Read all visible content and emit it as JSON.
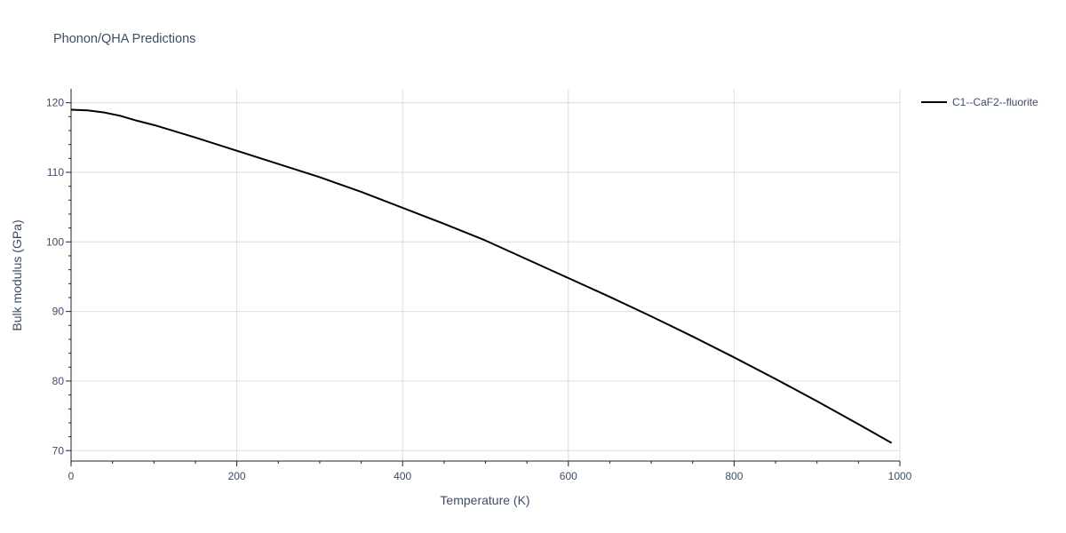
{
  "chart_data": {
    "type": "line",
    "title": "Phonon/QHA Predictions",
    "xlabel": "Temperature (K)",
    "ylabel": "Bulk modulus (GPa)",
    "xlim": [
      0,
      1000
    ],
    "ylim": [
      68.5,
      122
    ],
    "x_ticks": [
      0,
      200,
      400,
      600,
      800,
      1000
    ],
    "x_tick_labels": [
      "0",
      "200",
      "400",
      "600",
      "800",
      "1000"
    ],
    "y_ticks": [
      70,
      80,
      90,
      100,
      110,
      120
    ],
    "y_tick_labels": [
      "70",
      "80",
      "90",
      "100",
      "110",
      "120"
    ],
    "grid": true,
    "legend_position": "top-right",
    "line_color": "#000000",
    "series": [
      {
        "name": "C1--CaF2--fluorite",
        "x": [
          0,
          20,
          40,
          60,
          80,
          100,
          150,
          200,
          250,
          300,
          350,
          400,
          450,
          500,
          550,
          600,
          650,
          700,
          750,
          800,
          850,
          900,
          950,
          990
        ],
        "y": [
          119.0,
          118.9,
          118.6,
          118.1,
          117.4,
          116.8,
          115.0,
          113.1,
          111.2,
          109.3,
          107.2,
          104.9,
          102.6,
          100.2,
          97.5,
          94.8,
          92.1,
          89.3,
          86.4,
          83.4,
          80.3,
          77.1,
          73.8,
          71.1
        ]
      }
    ]
  }
}
